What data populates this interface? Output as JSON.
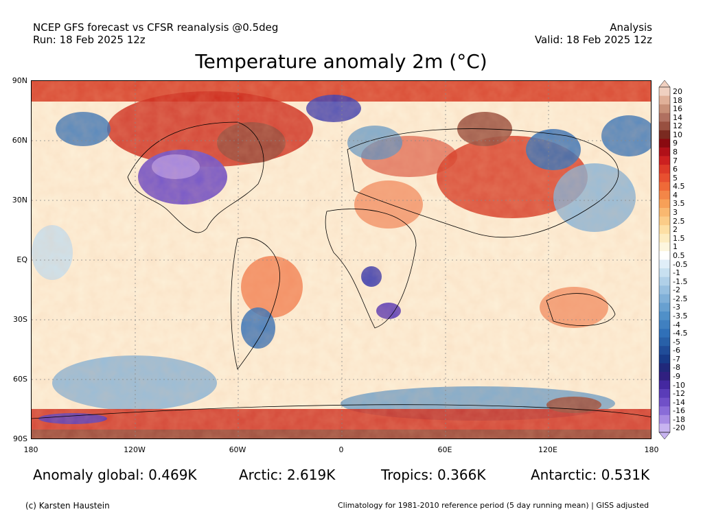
{
  "header": {
    "left_line1": "NCEP GFS forecast vs CFSR reanalysis @0.5deg",
    "left_line2": "Run: 18 Feb 2025 12z",
    "right_line1": "Analysis",
    "right_line2": "Valid: 18 Feb 2025 12z"
  },
  "title": "Temperature anomaly 2m (°C)",
  "lat_labels": [
    "90N",
    "60N",
    "30N",
    "EQ",
    "30S",
    "60S",
    "90S"
  ],
  "lon_labels": [
    "180",
    "120W",
    "60W",
    "0",
    "60E",
    "120E",
    "180"
  ],
  "colorbar": {
    "labels": [
      "20",
      "18",
      "16",
      "14",
      "12",
      "10",
      "9",
      "8",
      "7",
      "6",
      "5",
      "4.5",
      "4",
      "3.5",
      "3",
      "2.5",
      "2",
      "1.5",
      "1",
      "0.5",
      "-0.5",
      "-1",
      "-1.5",
      "-2",
      "-2.5",
      "-3",
      "-3.5",
      "-4",
      "-4.5",
      "-5",
      "-6",
      "-7",
      "-8",
      "-9",
      "-10",
      "-12",
      "-14",
      "-16",
      "-18",
      "-20"
    ],
    "colors": [
      "#f0d0c0",
      "#e0b098",
      "#c89078",
      "#b07060",
      "#985040",
      "#7a2a20",
      "#8a0a10",
      "#b01018",
      "#cc2020",
      "#dd3a28",
      "#e85030",
      "#ef6a38",
      "#f38648",
      "#f7a058",
      "#f9b870",
      "#fbcc88",
      "#fddfa4",
      "#fdecc0",
      "#fdf6de",
      "#ffffff",
      "#e0eef8",
      "#c8e0f0",
      "#b0d0e8",
      "#98c0e0",
      "#80b0d8",
      "#68a0d0",
      "#5090c8",
      "#4080c0",
      "#3070b8",
      "#2860a8",
      "#204c98",
      "#183a88",
      "#20287a",
      "#302080",
      "#4428a0",
      "#5a3cb8",
      "#7050c8",
      "#8a6cd8",
      "#a88ce4",
      "#c8b4f0"
    ]
  },
  "stats": {
    "global": "Anomaly global: 0.469K",
    "arctic": "Arctic: 2.619K",
    "tropics": "Tropics: 0.366K",
    "antarctic": "Antarctic: 0.531K"
  },
  "footer": {
    "credit": "(c) Karsten Haustein",
    "climatology": "Climatology for 1981-2010 reference period (5 day running mean) | GISS adjusted"
  }
}
